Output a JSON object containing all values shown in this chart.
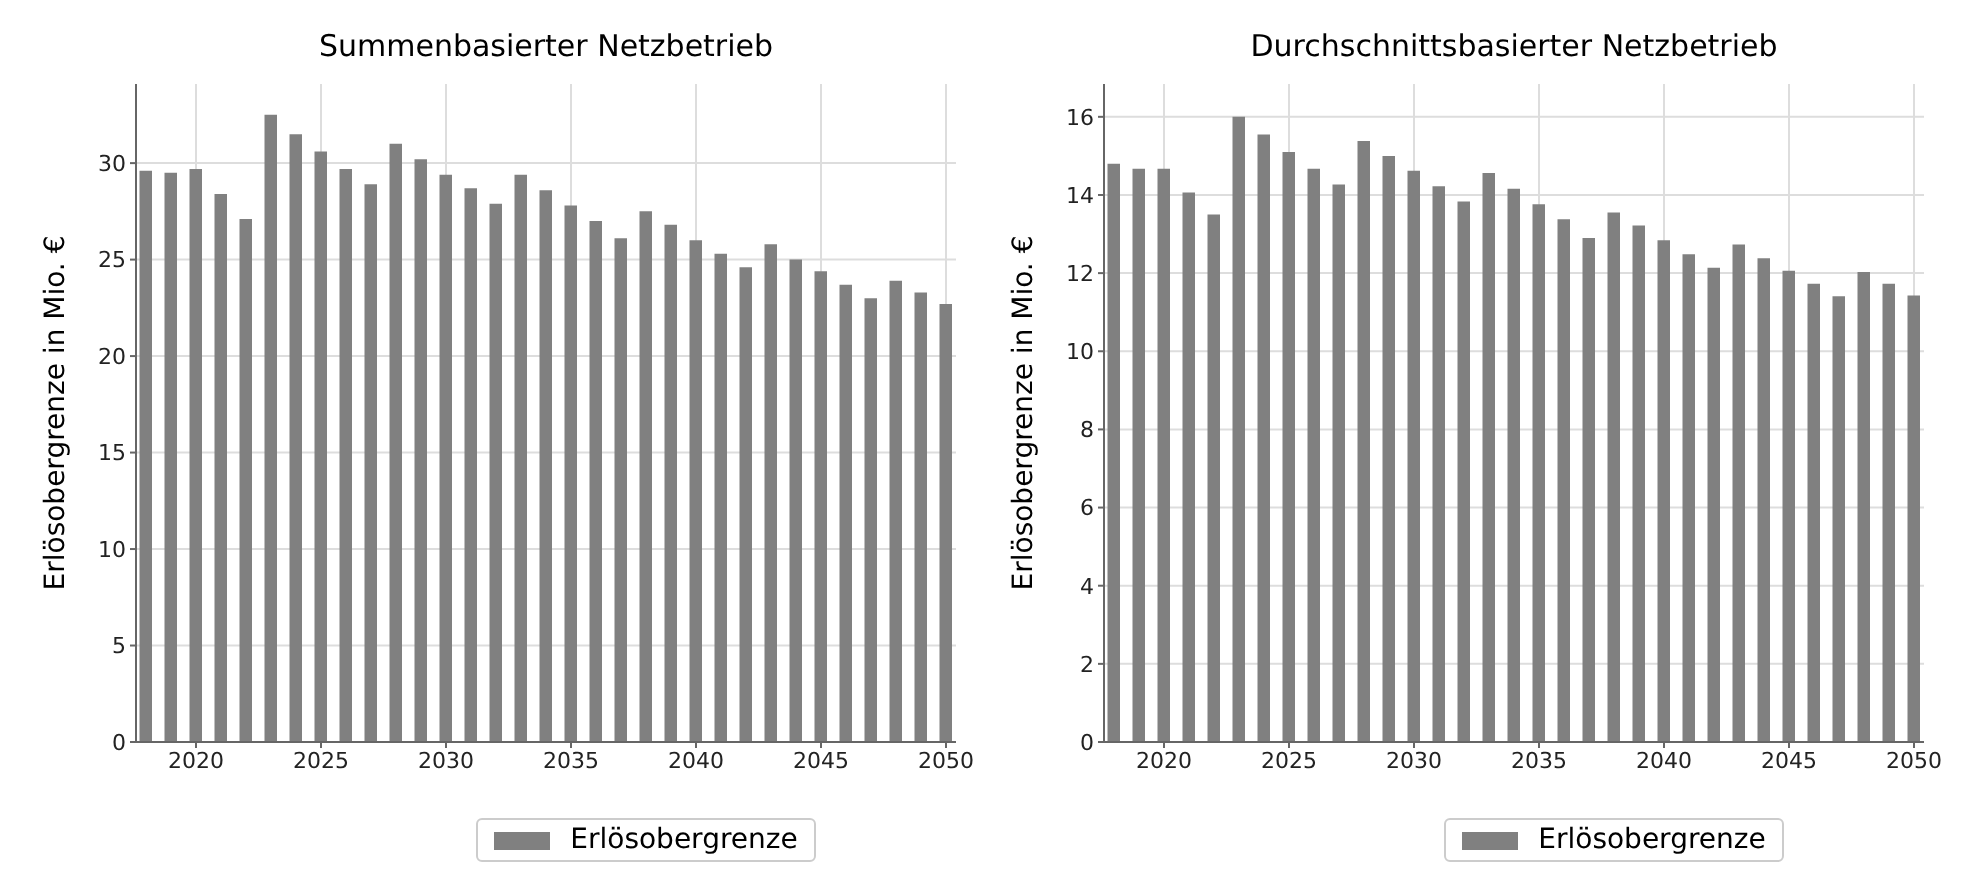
{
  "chart_data": [
    {
      "type": "bar",
      "title": "Summenbasierter Netzbetrieb",
      "ylabel": "Erlösobergrenze in Mio. €",
      "x": [
        2018,
        2019,
        2020,
        2021,
        2022,
        2023,
        2024,
        2025,
        2026,
        2027,
        2028,
        2029,
        2030,
        2031,
        2032,
        2033,
        2034,
        2035,
        2036,
        2037,
        2038,
        2039,
        2040,
        2041,
        2042,
        2043,
        2044,
        2045,
        2046,
        2047,
        2048,
        2049,
        2050
      ],
      "series": [
        {
          "name": "Erlösobergrenze",
          "color": "#808080",
          "values": [
            29.6,
            29.5,
            29.7,
            28.4,
            27.1,
            32.5,
            31.5,
            30.6,
            29.7,
            28.9,
            31.0,
            30.2,
            29.4,
            28.7,
            27.9,
            29.4,
            28.6,
            27.8,
            27.0,
            26.1,
            27.5,
            26.8,
            26.0,
            25.3,
            24.6,
            25.8,
            25.0,
            24.4,
            23.7,
            23.0,
            23.9,
            23.3,
            22.7
          ]
        }
      ],
      "xlim": [
        2017.6,
        2050.4
      ],
      "xticks": [
        2020,
        2025,
        2030,
        2035,
        2040,
        2045,
        2050
      ],
      "ylim": [
        0,
        34.1
      ],
      "yticks": [
        0,
        5,
        10,
        15,
        20,
        25,
        30
      ],
      "grid": true,
      "legend": "bottom"
    },
    {
      "type": "bar",
      "title": "Durchschnittsbasierter Netzbetrieb",
      "ylabel": "Erlösobergrenze in Mio. €",
      "x": [
        2018,
        2019,
        2020,
        2021,
        2022,
        2023,
        2024,
        2025,
        2026,
        2027,
        2028,
        2029,
        2030,
        2031,
        2032,
        2033,
        2034,
        2035,
        2036,
        2037,
        2038,
        2039,
        2040,
        2041,
        2042,
        2043,
        2044,
        2045,
        2046,
        2047,
        2048,
        2049,
        2050
      ],
      "series": [
        {
          "name": "Erlösobergrenze",
          "color": "#808080",
          "values": [
            14.8,
            14.67,
            14.67,
            14.06,
            13.5,
            16.0,
            15.55,
            15.1,
            14.67,
            14.27,
            15.38,
            15.0,
            14.62,
            14.22,
            13.83,
            14.56,
            14.16,
            13.76,
            13.38,
            12.9,
            13.55,
            13.22,
            12.84,
            12.48,
            12.14,
            12.73,
            12.38,
            12.06,
            11.73,
            11.41,
            12.03,
            11.73,
            11.43
          ]
        }
      ],
      "xlim": [
        2017.6,
        2050.4
      ],
      "xticks": [
        2020,
        2025,
        2030,
        2035,
        2040,
        2045,
        2050
      ],
      "ylim": [
        0,
        16.84
      ],
      "yticks": [
        0,
        2,
        4,
        6,
        8,
        10,
        12,
        14,
        16
      ],
      "grid": true,
      "legend": "bottom"
    }
  ]
}
